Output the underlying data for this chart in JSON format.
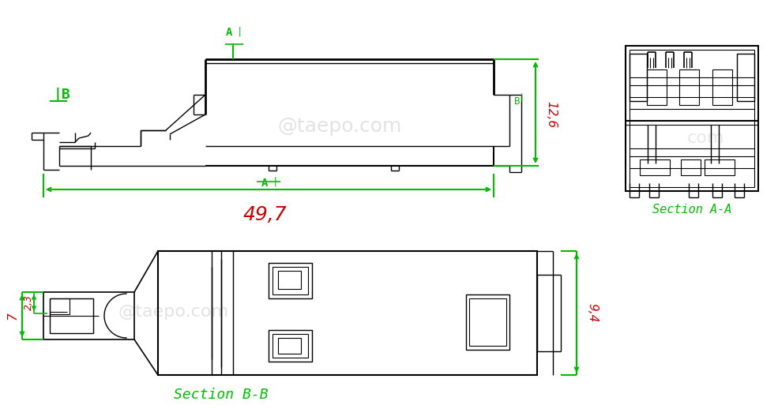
{
  "background_color": "#ffffff",
  "line_color": "#000000",
  "green_color": "#00bb00",
  "red_color": "#cc0000",
  "watermark_color": "#d0d0d0",
  "watermark_text": "@taepo.com",
  "dim_49_7": "49,7",
  "dim_12_6": "12,6",
  "dim_9_4": "9,4",
  "dim_7": "7",
  "dim_2_3": "2,3",
  "label_section_AA": "Section A-A",
  "label_section_BB": "Section B-B"
}
